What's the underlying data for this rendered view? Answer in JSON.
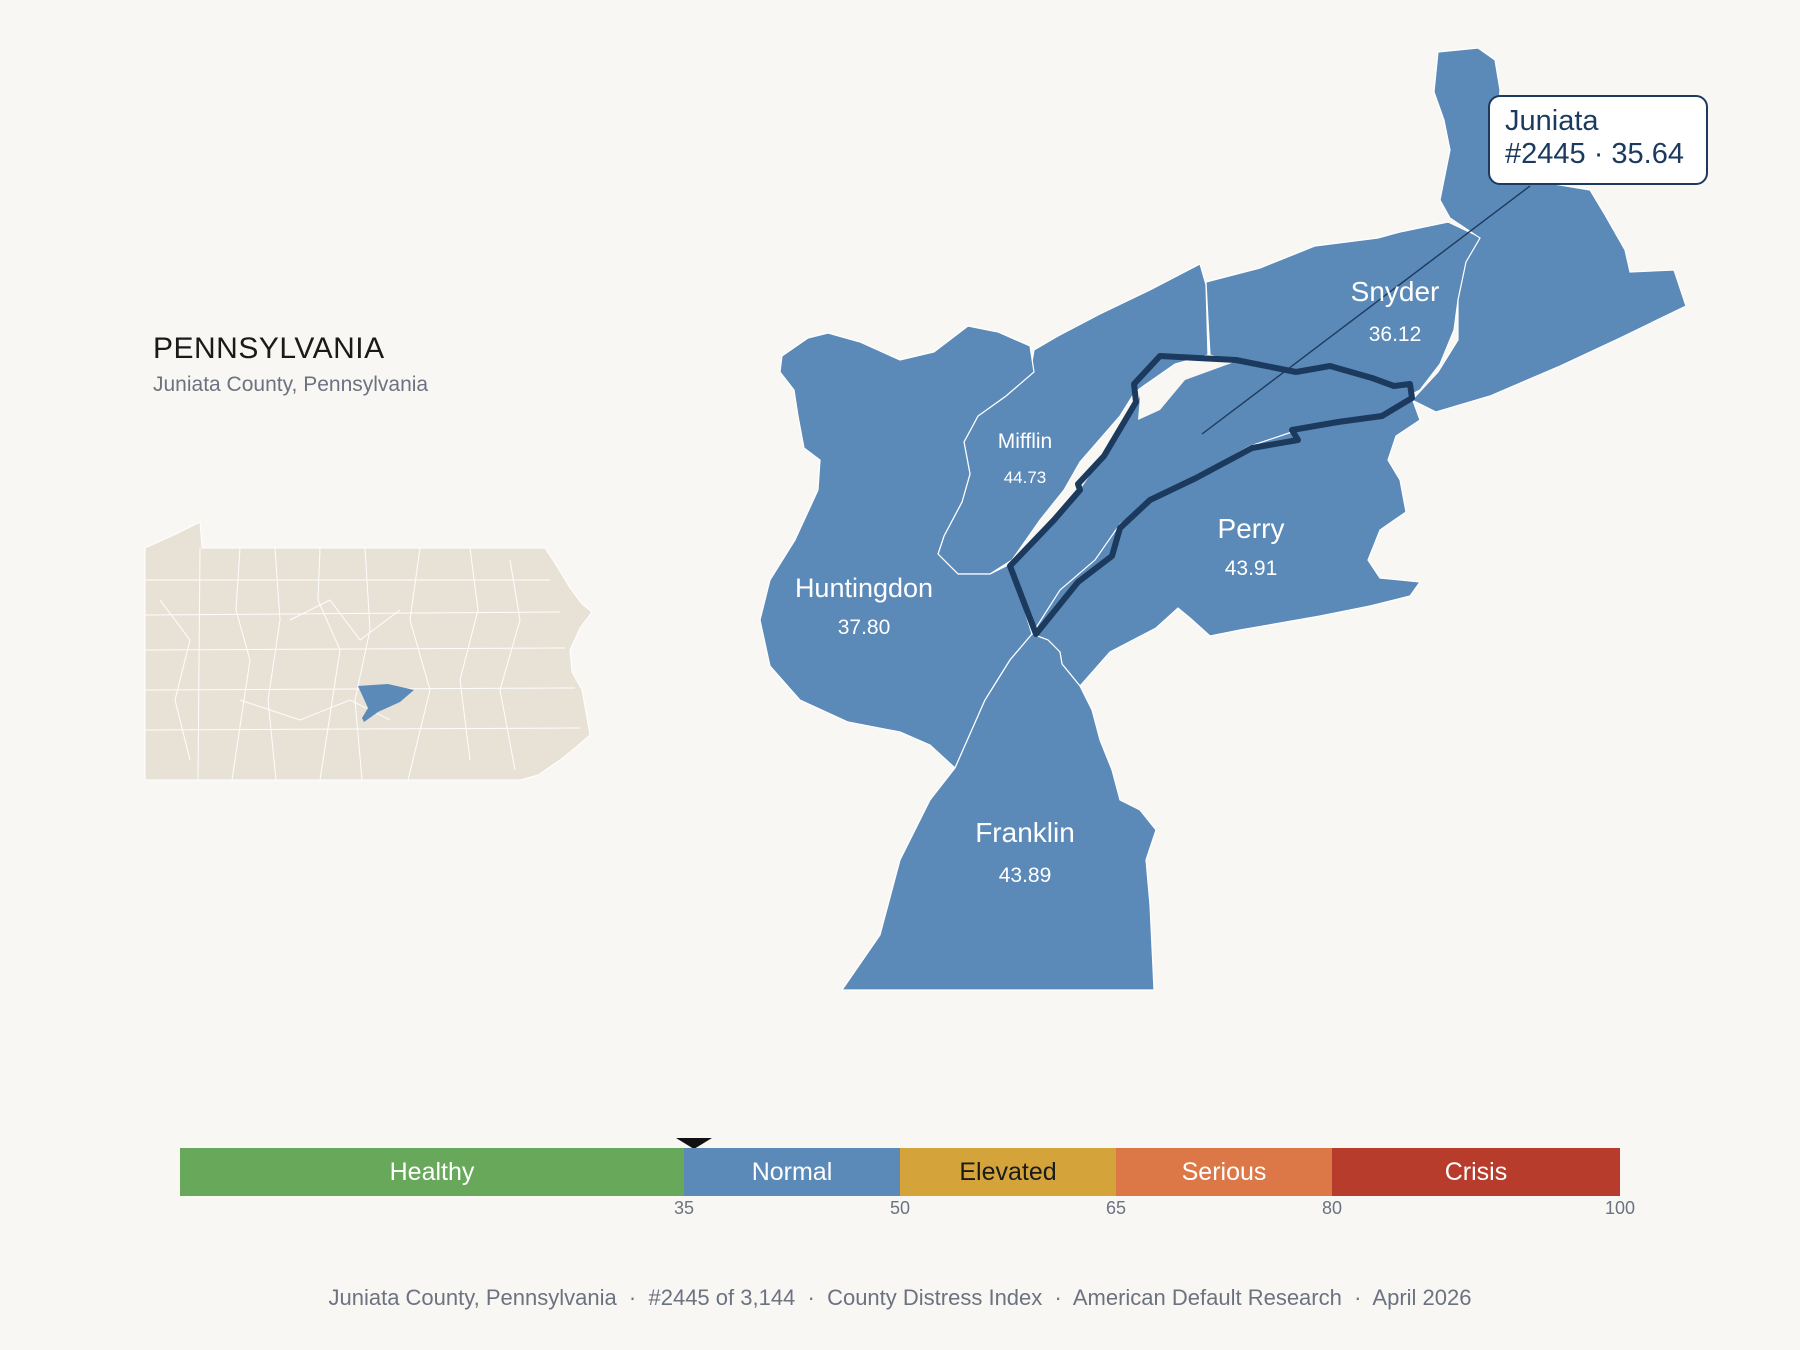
{
  "state": {
    "title": "PENNSYLVANIA",
    "subtitle": "Juniata County, Pennsylvania"
  },
  "colors": {
    "background": "#f9f7f3",
    "county_fill": "#5b8ab8",
    "county_border": "#ffffff",
    "highlight_outline": "#1c3a5e",
    "inset_fill": "#e8e2d6",
    "inset_highlight": "#5b8ab8"
  },
  "callout": {
    "name": "Juniata",
    "rank_score": "#2445 · 35.64"
  },
  "counties": [
    {
      "name": "Snyder",
      "value": "36.12"
    },
    {
      "name": "Mifflin",
      "value": "44.73"
    },
    {
      "name": "Perry",
      "value": "43.91"
    },
    {
      "name": "Huntingdon",
      "value": "37.80"
    },
    {
      "name": "Franklin",
      "value": "43.89"
    }
  ],
  "scale": {
    "min": 0,
    "max": 100,
    "marker_value": 35.64,
    "bands": [
      {
        "label": "Healthy",
        "from": 0,
        "to": 35,
        "color": "#67a85a",
        "text_color": "#ffffff"
      },
      {
        "label": "Normal",
        "from": 35,
        "to": 50,
        "color": "#5b8ab8",
        "text_color": "#ffffff"
      },
      {
        "label": "Elevated",
        "from": 50,
        "to": 65,
        "color": "#d4a43a",
        "text_color": "#1a1a1a"
      },
      {
        "label": "Serious",
        "from": 65,
        "to": 80,
        "color": "#dc7848",
        "text_color": "#ffffff"
      },
      {
        "label": "Crisis",
        "from": 80,
        "to": 100,
        "color": "#b83c2c",
        "text_color": "#ffffff"
      }
    ],
    "ticks": [
      "35",
      "50",
      "65",
      "80",
      "100"
    ]
  },
  "footer": {
    "county": "Juniata County, Pennsylvania",
    "rank": "#2445 of 3,144",
    "index": "County Distress Index",
    "publisher": "American Default Research",
    "date": "April 2026"
  }
}
